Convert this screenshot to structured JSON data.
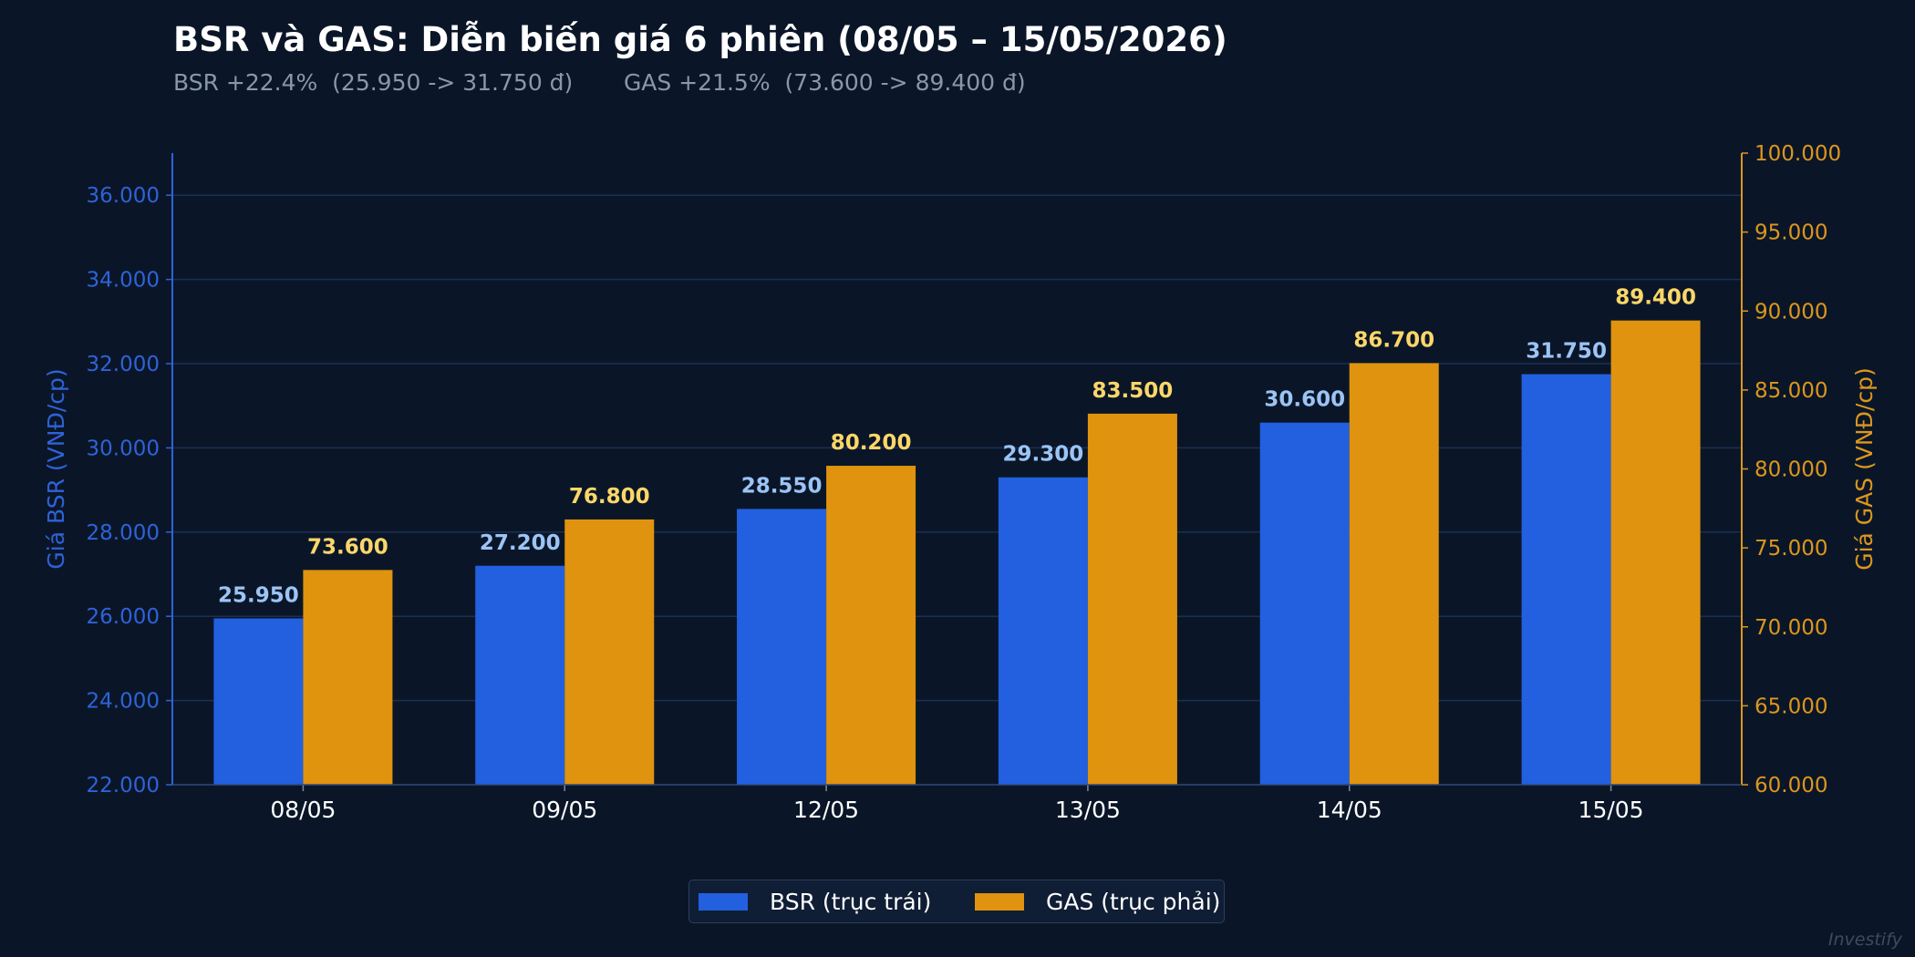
{
  "chart_data": {
    "type": "bar",
    "title": "BSR và GAS: Diễn biến giá 6 phiên (08/05 – 15/05/2026)",
    "subtitle": {
      "bsr": "BSR +22.4%  (25.950 -> 31.750 đ)",
      "gas": "GAS +21.5%  (73.600 -> 89.400 đ)"
    },
    "categories": [
      "08/05",
      "09/05",
      "12/05",
      "13/05",
      "14/05",
      "15/05"
    ],
    "series": [
      {
        "name": "BSR (trục trái)",
        "axis": "left",
        "color": "#2260e0",
        "label_color": "#9cc4f5",
        "values": [
          25950,
          27200,
          28550,
          29300,
          30600,
          31750
        ],
        "labels": [
          "25.950",
          "27.200",
          "28.550",
          "29.300",
          "30.600",
          "31.750"
        ]
      },
      {
        "name": "GAS (trục phải)",
        "axis": "right",
        "color": "#e0930e",
        "label_color": "#fcd769",
        "values": [
          73600,
          76800,
          80200,
          83500,
          86700,
          89400
        ],
        "labels": [
          "73.600",
          "76.800",
          "80.200",
          "83.500",
          "86.700",
          "89.400"
        ]
      }
    ],
    "y_left": {
      "label": "Giá BSR (VNĐ/cp)",
      "range": [
        22000,
        37000
      ],
      "ticks": [
        22000,
        24000,
        26000,
        28000,
        30000,
        32000,
        34000,
        36000
      ],
      "tick_labels": [
        "22.000",
        "24.000",
        "26.000",
        "28.000",
        "30.000",
        "32.000",
        "34.000",
        "36.000"
      ],
      "color": "#2f62d8"
    },
    "y_right": {
      "label": "Giá GAS (VNĐ/cp)",
      "range": [
        60000,
        100000
      ],
      "ticks": [
        60000,
        65000,
        70000,
        75000,
        80000,
        85000,
        90000,
        95000,
        100000
      ],
      "tick_labels": [
        "60.000",
        "65.000",
        "70.000",
        "75.000",
        "80.000",
        "85.000",
        "90.000",
        "95.000",
        "100.000"
      ],
      "color": "#dc961e"
    },
    "grid": true,
    "legend_position": "bottom-center"
  },
  "watermark": "Investify"
}
